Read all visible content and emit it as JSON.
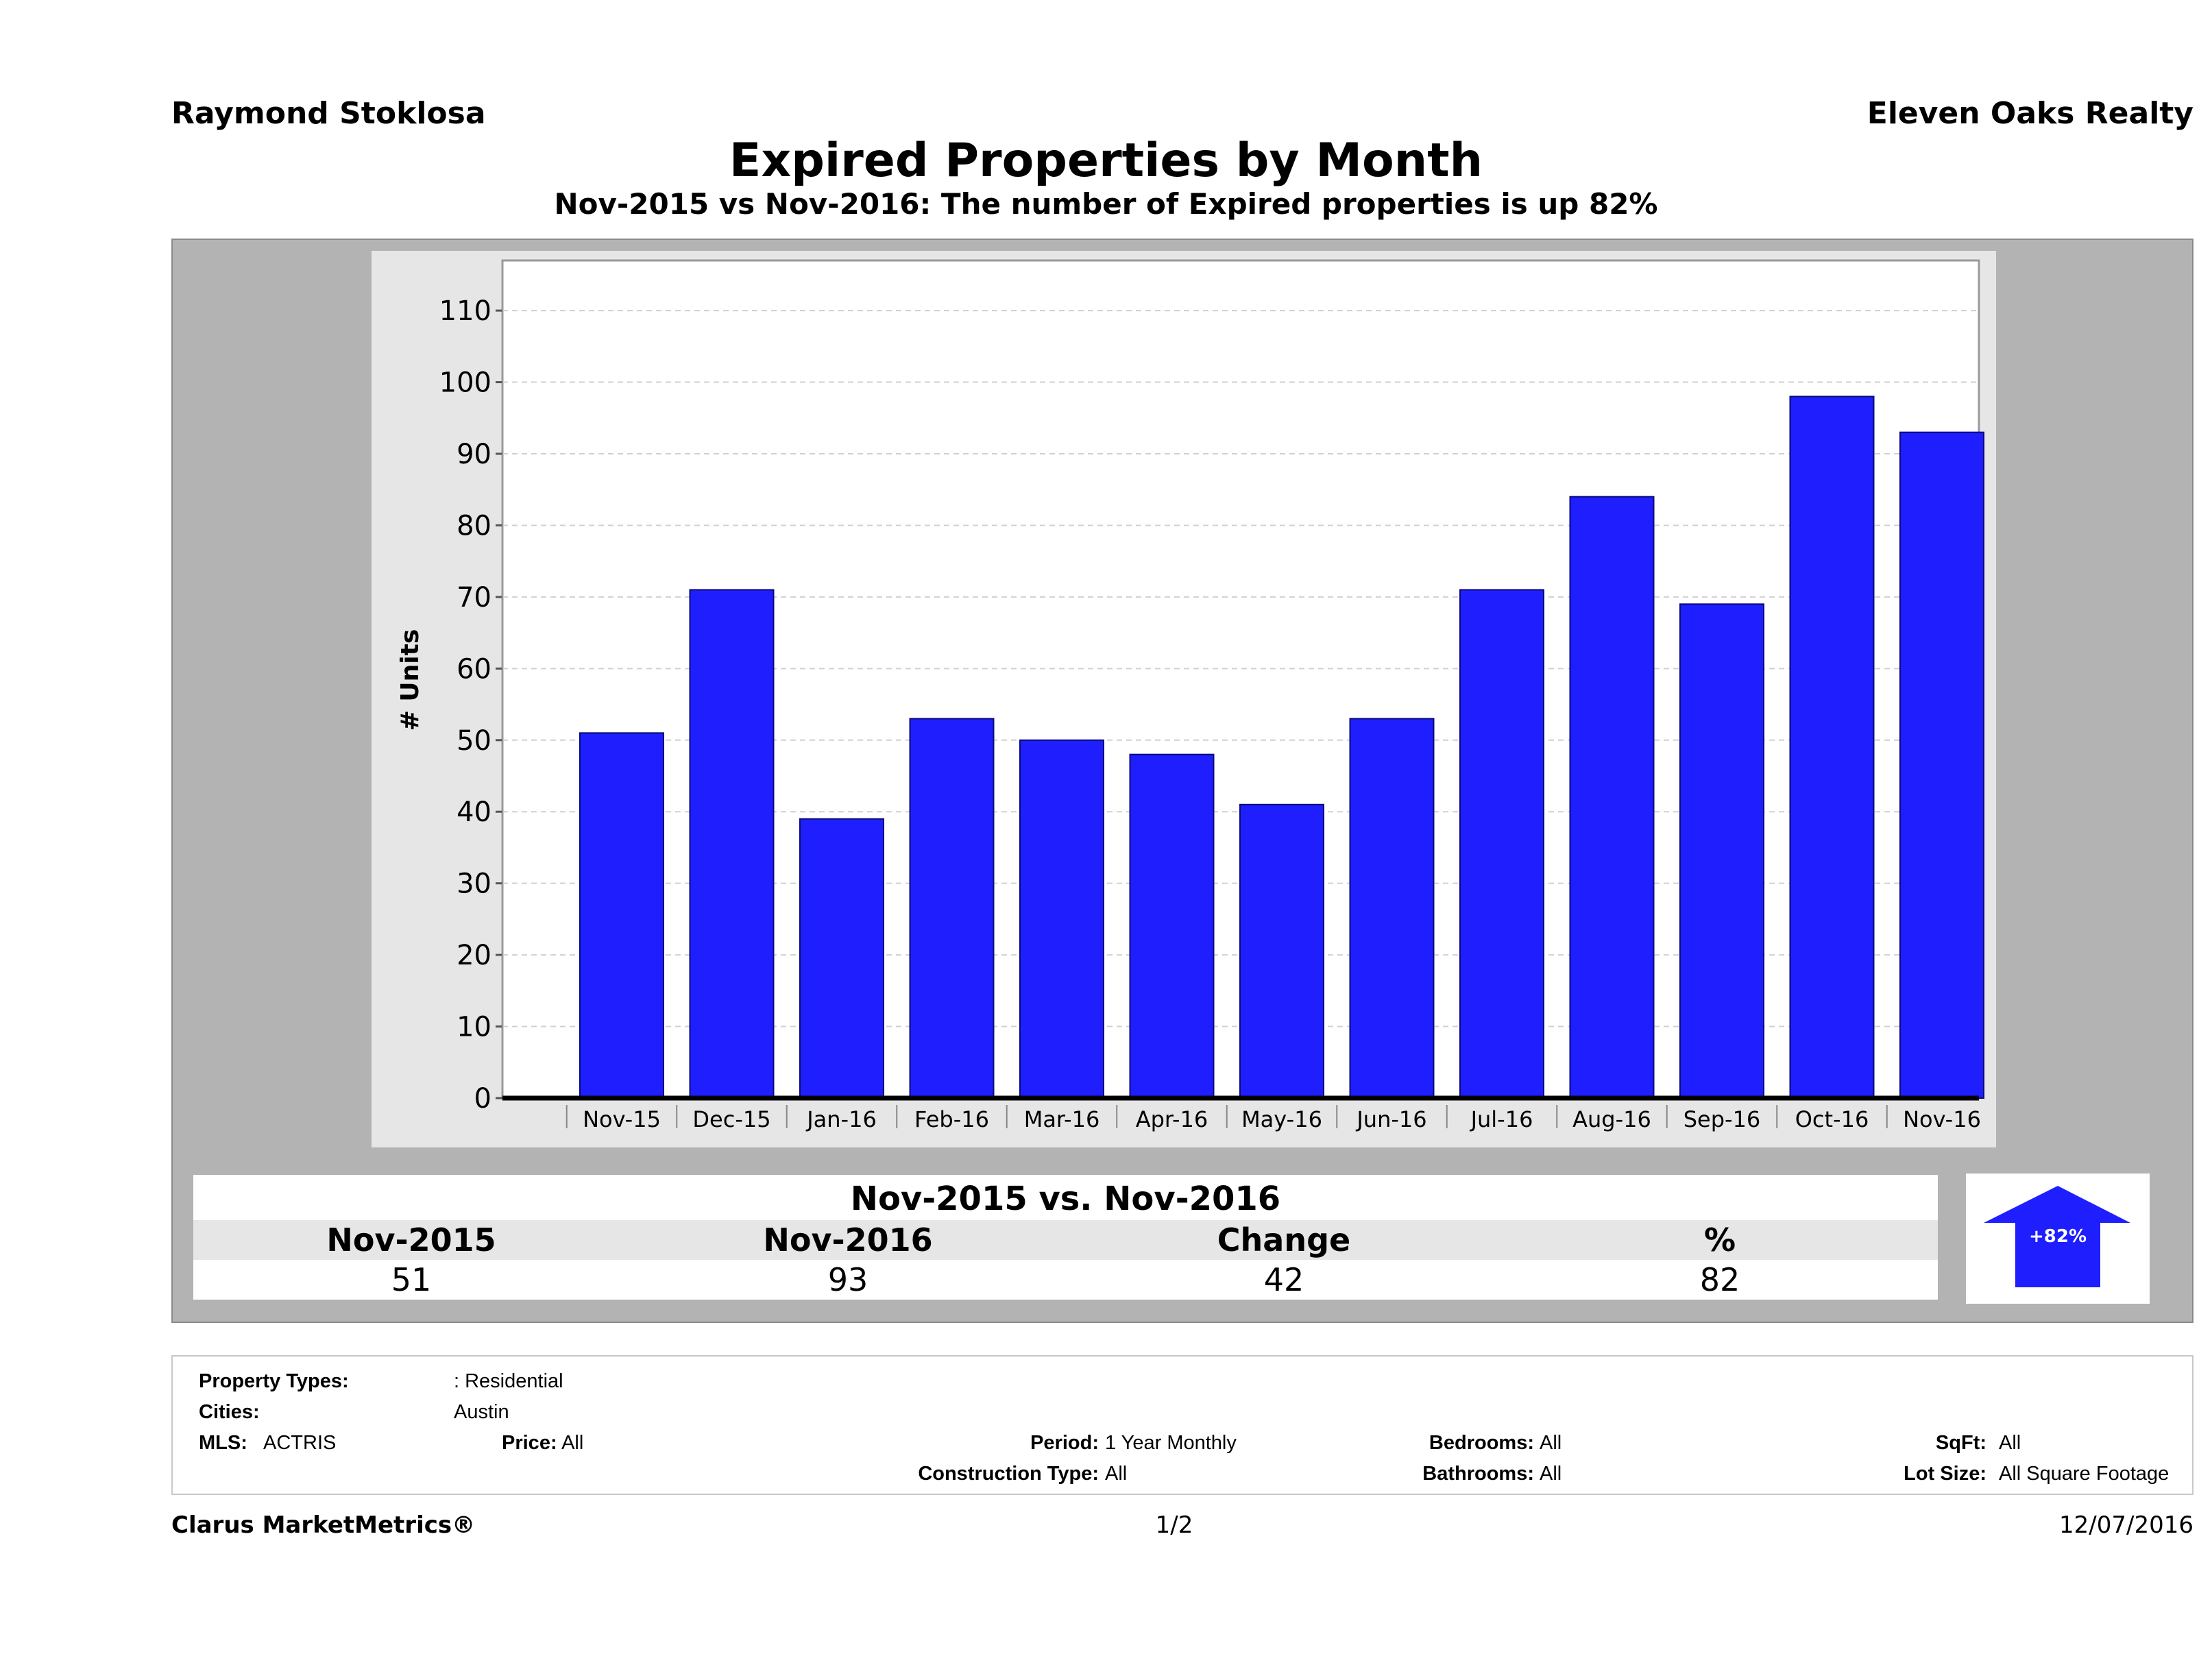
{
  "header": {
    "agent": "Raymond Stoklosa",
    "company": "Eleven Oaks Realty",
    "title": "Expired Properties by Month",
    "subtitle": "Nov-2015 vs Nov-2016: The number of Expired  properties is up 82%"
  },
  "chart_data": {
    "type": "bar",
    "categories": [
      "Nov-15",
      "Dec-15",
      "Jan-16",
      "Feb-16",
      "Mar-16",
      "Apr-16",
      "May-16",
      "Jun-16",
      "Jul-16",
      "Aug-16",
      "Sep-16",
      "Oct-16",
      "Nov-16"
    ],
    "values": [
      51,
      71,
      39,
      53,
      50,
      48,
      41,
      53,
      71,
      84,
      69,
      98,
      93
    ],
    "ylabel": "# Units",
    "ylim": [
      0,
      117
    ],
    "yticks": [
      0,
      10,
      20,
      30,
      40,
      50,
      60,
      70,
      80,
      90,
      100,
      110
    ],
    "grid": true,
    "bar_color": "#1e1eff",
    "plot_bg": "#ffffff",
    "frame_bg": "#e6e6e6"
  },
  "summary": {
    "title": "Nov-2015 vs. Nov-2016",
    "headers": [
      "Nov-2015",
      "Nov-2016",
      "Change",
      "%"
    ],
    "values": [
      "51",
      "93",
      "42",
      "82"
    ],
    "badge_text": "+82%",
    "badge_icon": "up-arrow-icon",
    "badge_color": "#1e1eff"
  },
  "criteria": {
    "property_types_label": "Property Types:",
    "property_types_value": ": Residential",
    "cities_label": "Cities:",
    "cities_value": "Austin",
    "mls_label": "MLS:",
    "mls_value": "ACTRIS",
    "price_label": "Price:",
    "price_value": "All",
    "period_label": "Period:",
    "period_value": "1 Year Monthly",
    "construction_label": "Construction Type:",
    "construction_value": "All",
    "bedrooms_label": "Bedrooms:",
    "bedrooms_value": "All",
    "bathrooms_label": "Bathrooms:",
    "bathrooms_value": "All",
    "sqft_label": "SqFt:",
    "sqft_value": "All",
    "lotsize_label": "Lot Size:",
    "lotsize_value": "All Square Footage"
  },
  "footer": {
    "brand": "Clarus MarketMetrics®",
    "page": "1/2",
    "date": "12/07/2016"
  }
}
